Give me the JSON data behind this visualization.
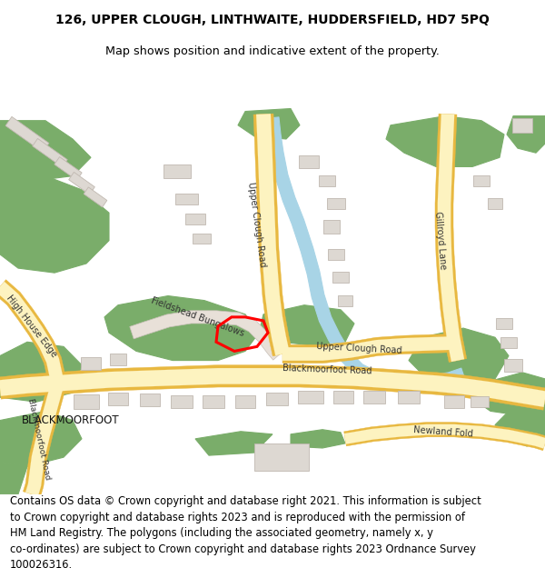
{
  "title_line1": "126, UPPER CLOUGH, LINTHWAITE, HUDDERSFIELD, HD7 5PQ",
  "title_line2": "Map shows position and indicative extent of the property.",
  "footer_text": "Contains OS data © Crown copyright and database right 2021. This information is subject\nto Crown copyright and database rights 2023 and is reproduced with the permission of\nHM Land Registry. The polygons (including the associated geometry, namely x, y\nco-ordinates) are subject to Crown copyright and database rights 2023 Ordnance Survey\n100026316.",
  "title_fontsize": 10,
  "footer_fontsize": 8.3,
  "bg_color": "#ffffff",
  "map_bg": "#f7f4ef",
  "road_yellow_fill": "#fdf3c0",
  "road_yellow_border": "#e8b840",
  "green_color": "#7aad6a",
  "blue_color": "#a8d4e6",
  "building_color": "#ddd8d2",
  "building_outline": "#c0b8b0",
  "road_outline_color": "#c8c8c8",
  "plot_color": "#ff0000",
  "fig_width": 6.0,
  "fig_height": 6.25
}
